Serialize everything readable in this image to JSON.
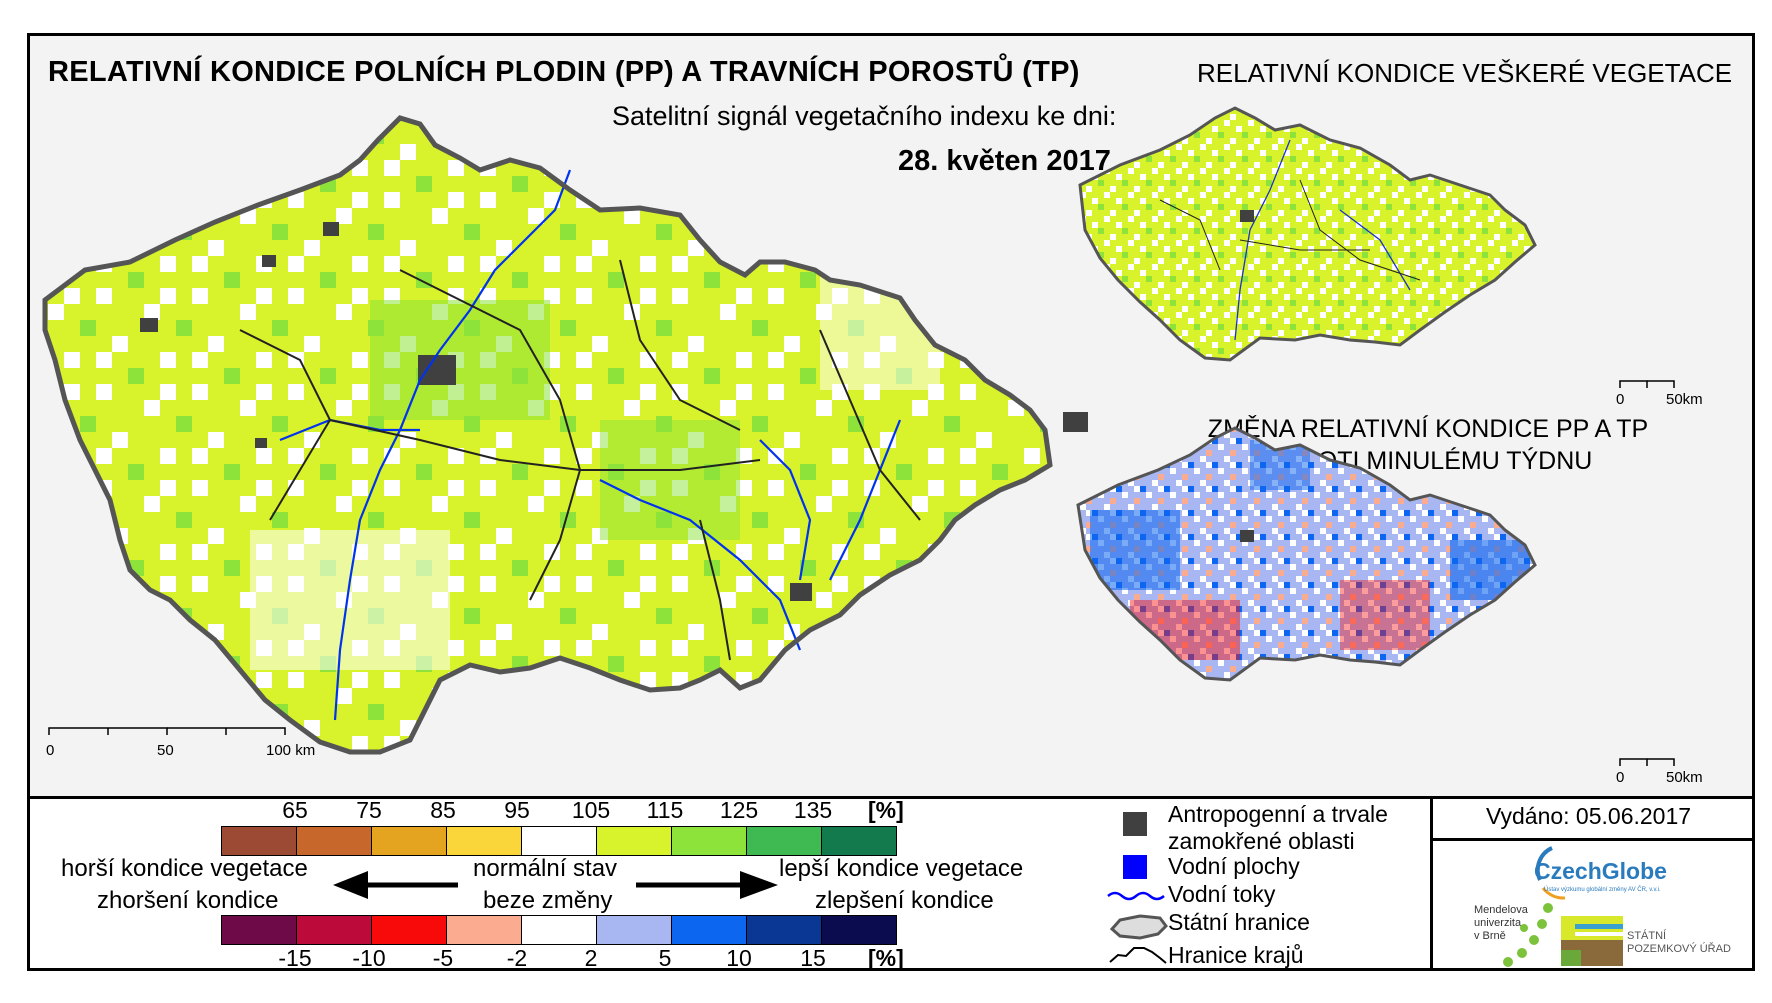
{
  "titles": {
    "main": "RELATIVNÍ KONDICE POLNÍCH PLODIN (PP) A TRAVNÍCH POROSTŮ (TP)",
    "subtitle": "Satelitní signál vegetačního indexu ke dni:",
    "date": "28. květen 2017",
    "right_top": "RELATIVNÍ KONDICE VEŠKERÉ VEGETACE",
    "change_line1": "ZMĚNA RELATIVNÍ KONDICE PP A TP",
    "change_line2": "OPROTI MINULÉMU TÝDNU"
  },
  "scalebars": {
    "main": [
      "0",
      "50",
      "100 km"
    ],
    "small_top": [
      "0",
      "50km"
    ],
    "small_bottom": [
      "0",
      "50km"
    ]
  },
  "legend_condition": {
    "ticks": [
      "65",
      "75",
      "85",
      "95",
      "105",
      "115",
      "125",
      "135"
    ],
    "unit": "[%]",
    "colors": [
      "#9c4a33",
      "#c8672b",
      "#e5a41f",
      "#fad63a",
      "#ffffff",
      "#d8f22c",
      "#8ee33a",
      "#3fba52",
      "#137a4e"
    ]
  },
  "legend_change": {
    "ticks": [
      "-15",
      "-10",
      "-5",
      "-2",
      "2",
      "5",
      "10",
      "15"
    ],
    "unit": "[%]",
    "colors": [
      "#6f0a48",
      "#bc0a3a",
      "#f80a0a",
      "#fbab8f",
      "#ffffff",
      "#a8b7f1",
      "#0d66f0",
      "#0a3694",
      "#0a0c4f"
    ]
  },
  "legend_labels": {
    "worse_condition": "horší kondice vegetace",
    "worsening": "zhoršení kondice",
    "normal": "normální stav",
    "no_change": "beze změny",
    "better_condition": "lepší kondice vegetace",
    "improvement": "zlepšení kondice"
  },
  "legend_symbols": {
    "anthropogenic_line1": "Antropogenní a trvale",
    "anthropogenic_line2": "zamokřené oblasti",
    "water_bodies": "Vodní plochy",
    "water_streams": "Vodní toky",
    "state_border": "Státní hranice",
    "region_border": "Hranice krajů",
    "anthropogenic_color": "#404040",
    "water_color": "#0000ff"
  },
  "issued": "Vydáno: 05.06.2017",
  "logos": {
    "czechglobe": "CzechGlobe",
    "czechglobe_sub": "Ústav výzkumu globální změny AV ČR, v.v.i.",
    "mendel": [
      "Mendelova",
      "univerzita",
      "v Brně"
    ],
    "spu": [
      "STÁTNÍ",
      "POZEMKOVÝ ÚŘAD"
    ]
  }
}
